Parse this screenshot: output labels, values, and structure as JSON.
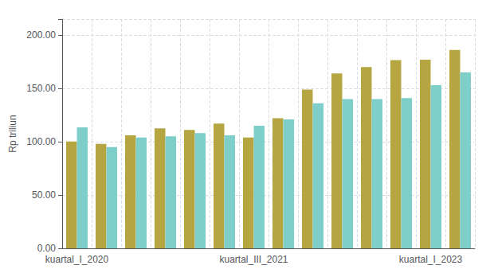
{
  "chart_data": {
    "type": "bar",
    "categories": [
      "kuartal_I_2020",
      null,
      null,
      null,
      null,
      null,
      "kuartal_III_2021",
      null,
      null,
      null,
      null,
      null,
      "kuartal_I_2023",
      null
    ],
    "series": [
      {
        "color": "#b5a642",
        "values": [
          100.3,
          98.0,
          106.0,
          112.5,
          111.0,
          117.0,
          104.0,
          122.0,
          149.0,
          164.0,
          170.0,
          176.5,
          177.0,
          186.0
        ]
      },
      {
        "color": "#7ececa",
        "values": [
          113.5,
          95.0,
          104.0,
          105.0,
          108.0,
          106.0,
          115.0,
          121.0,
          136.0,
          140.0,
          140.0,
          141.0,
          153.0,
          165.0
        ]
      }
    ],
    "ylabel": "Rp triliun",
    "ylim": [
      0,
      215
    ],
    "yticks": [
      {
        "value": 0,
        "label": "0.00"
      },
      {
        "value": 50,
        "label": "50.00"
      },
      {
        "value": 100,
        "label": "100.00"
      },
      {
        "value": 150,
        "label": "150.00"
      },
      {
        "value": 200,
        "label": "200.00"
      }
    ],
    "grid": true
  }
}
